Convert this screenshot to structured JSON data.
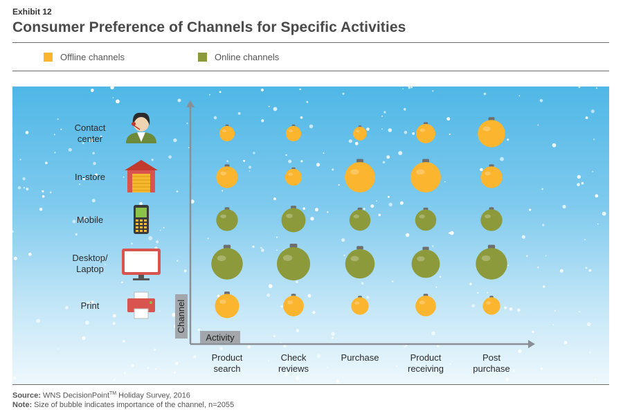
{
  "exhibit": "Exhibit 12",
  "title": "Consumer Preference of Channels for Specific Activities",
  "legend": [
    {
      "label": "Offline channels",
      "color": "#fbb52e"
    },
    {
      "label": "Online channels",
      "color": "#8c9a3b"
    }
  ],
  "axes": {
    "y_title": "Channel",
    "x_title": "Activity"
  },
  "footer": {
    "source_label": "Source:",
    "source_text": "WNS DecisionPoint",
    "source_tm": "TM",
    "source_rest": " Holiday Survey, 2016",
    "note_label": "Note:",
    "note_text": "Size of bubble indicates importance of the channel, n=2055"
  },
  "chart_data": {
    "type": "bubble",
    "x_categories": [
      "Product search",
      "Check reviews",
      "Purchase",
      "Product receiving",
      "Post purchase"
    ],
    "x_category_lines": [
      [
        "Product",
        "search"
      ],
      [
        "Check",
        "reviews"
      ],
      [
        "Purchase"
      ],
      [
        "Product",
        "receiving"
      ],
      [
        "Post",
        "purchase"
      ]
    ],
    "y_categories": [
      {
        "label": "Contact center",
        "lines": [
          "Contact",
          "center"
        ],
        "group": "Offline channels",
        "icon": "contact-center-icon"
      },
      {
        "label": "In-store",
        "lines": [
          "In-store"
        ],
        "group": "Offline channels",
        "icon": "store-icon"
      },
      {
        "label": "Mobile",
        "lines": [
          "Mobile"
        ],
        "group": "Online channels",
        "icon": "mobile-phone-icon"
      },
      {
        "label": "Desktop/ Laptop",
        "lines": [
          "Desktop/",
          "Laptop"
        ],
        "group": "Online channels",
        "icon": "desktop-monitor-icon"
      },
      {
        "label": "Print",
        "lines": [
          "Print"
        ],
        "group": "Offline channels",
        "icon": "printer-icon"
      }
    ],
    "bubble_size_relative": [
      [
        1,
        1,
        0.8,
        1.6,
        3.2
      ],
      [
        2,
        1.2,
        3.9,
        3.9,
        2
      ],
      [
        2,
        2.5,
        1.9,
        1.9,
        2
      ],
      [
        4.2,
        4.7,
        3.7,
        3.4,
        4.2
      ],
      [
        2.5,
        1.8,
        1.3,
        1.8,
        1.3
      ]
    ],
    "legend_placement": "top-left",
    "grid": false
  }
}
